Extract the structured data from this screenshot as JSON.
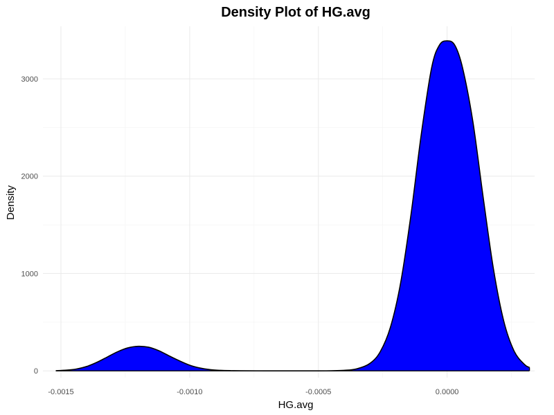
{
  "chart_data": {
    "type": "area",
    "title": "Density Plot of HG.avg",
    "xlabel": "HG.avg",
    "ylabel": "Density",
    "xlim": [
      -0.00157,
      0.00034
    ],
    "ylim": [
      -70,
      3540
    ],
    "x_ticks": [
      -0.0015,
      -0.001,
      -0.0005,
      0.0
    ],
    "x_tick_labels": [
      "-0.0015",
      "-0.0010",
      "-0.0005",
      "0.0000"
    ],
    "x_minor_ticks": [
      -0.00125,
      -0.00075,
      -0.00025,
      0.00025
    ],
    "y_ticks": [
      0,
      1000,
      2000,
      3000
    ],
    "y_tick_labels": [
      "0",
      "1000",
      "2000",
      "3000"
    ],
    "y_minor_ticks": [
      500,
      1500,
      2500
    ],
    "grid": true,
    "fill_color": "#0000ff",
    "line_color": "#000000",
    "series": [
      {
        "x": [
          -0.00152,
          -0.00148,
          -0.00144,
          -0.0014,
          -0.00136,
          -0.00132,
          -0.00128,
          -0.00124,
          -0.0012,
          -0.00116,
          -0.00112,
          -0.00108,
          -0.00104,
          -0.001,
          -0.00096,
          -0.00092,
          -0.00088,
          -0.00084,
          -0.0008,
          -0.0007,
          -0.0006,
          -0.0005,
          -0.00045,
          -0.0004,
          -0.00035,
          -0.0003,
          -0.00026,
          -0.00022,
          -0.00018,
          -0.00014,
          -0.0001,
          -6e-05,
          -3e-05,
          0.0,
          3e-05,
          6e-05,
          0.0001,
          0.00014,
          0.00018,
          0.00022,
          0.00026,
          0.0003,
          0.00032
        ],
        "y": [
          2,
          7,
          19,
          45,
          88,
          142,
          196,
          236,
          252,
          243,
          207,
          154,
          103,
          58,
          29,
          12,
          5,
          2,
          1,
          0,
          0,
          0,
          1,
          5,
          21,
          76,
          195,
          449,
          910,
          1609,
          2435,
          3114,
          3345,
          3390,
          3345,
          3114,
          2563,
          1786,
          1048,
          512,
          205,
          67,
          35
        ]
      }
    ]
  }
}
